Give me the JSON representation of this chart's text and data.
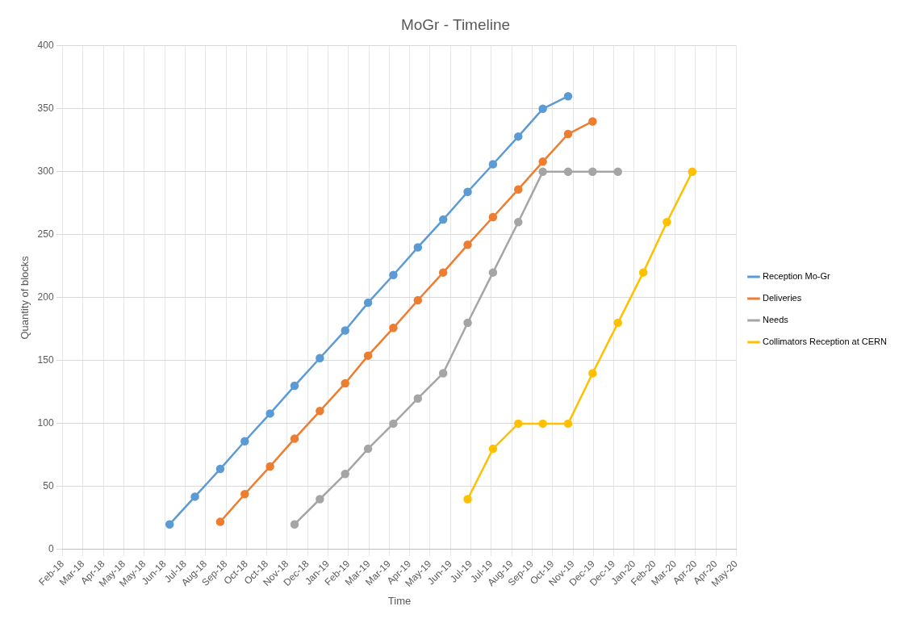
{
  "chart_data": {
    "type": "line",
    "title": "MoGr - Timeline",
    "xlabel": "Time",
    "ylabel": "Quantity of blocks",
    "series": [
      {
        "name": "Reception Mo-Gr",
        "color": "#5b9bd5",
        "x": [
          "2018-07-01",
          "2018-08-01",
          "2018-09-01",
          "2018-10-01",
          "2018-11-01",
          "2018-12-01",
          "2019-01-01",
          "2019-02-01",
          "2019-03-01",
          "2019-04-01",
          "2019-05-01",
          "2019-06-01",
          "2019-07-01",
          "2019-08-01",
          "2019-09-01",
          "2019-10-01",
          "2019-11-01"
        ],
        "values": [
          20,
          42,
          64,
          86,
          108,
          130,
          152,
          174,
          196,
          218,
          240,
          262,
          284,
          306,
          328,
          350,
          360
        ]
      },
      {
        "name": "Deliveries",
        "color": "#ed7d31",
        "x": [
          "2018-09-01",
          "2018-10-01",
          "2018-11-01",
          "2018-12-01",
          "2019-01-01",
          "2019-02-01",
          "2019-03-01",
          "2019-04-01",
          "2019-05-01",
          "2019-06-01",
          "2019-07-01",
          "2019-08-01",
          "2019-09-01",
          "2019-10-01",
          "2019-11-01",
          "2019-12-01"
        ],
        "values": [
          22,
          44,
          66,
          88,
          110,
          132,
          154,
          176,
          198,
          220,
          242,
          264,
          286,
          308,
          330,
          340
        ]
      },
      {
        "name": "Needs",
        "color": "#a5a5a5",
        "x": [
          "2018-12-01",
          "2019-01-01",
          "2019-02-01",
          "2019-03-01",
          "2019-04-01",
          "2019-05-01",
          "2019-06-01",
          "2019-07-01",
          "2019-08-01",
          "2019-09-01",
          "2019-10-01",
          "2019-11-01",
          "2019-12-01",
          "2020-01-01"
        ],
        "values": [
          20,
          40,
          60,
          80,
          100,
          120,
          140,
          180,
          220,
          260,
          300,
          300,
          300,
          300
        ]
      },
      {
        "name": "Collimators Reception at CERN",
        "color": "#ffc000",
        "x": [
          "2019-07-01",
          "2019-08-01",
          "2019-09-01",
          "2019-10-01",
          "2019-11-01",
          "2019-12-01",
          "2020-01-01",
          "2020-02-01",
          "2020-03-01",
          "2020-04-01"
        ],
        "values": [
          40,
          80,
          100,
          100,
          100,
          140,
          180,
          220,
          260,
          300
        ]
      }
    ],
    "xlim": [
      "2018-02-20",
      "2020-05-25"
    ],
    "xticks": [
      {
        "value": "2018-02-20",
        "label": "Feb-18"
      },
      {
        "value": "2018-03-17",
        "label": "Mar-18"
      },
      {
        "value": "2018-04-11",
        "label": "Apr-18"
      },
      {
        "value": "2018-05-06",
        "label": "May-18"
      },
      {
        "value": "2018-05-31",
        "label": "May-18"
      },
      {
        "value": "2018-06-25",
        "label": "Jun-18"
      },
      {
        "value": "2018-07-20",
        "label": "Jul-18"
      },
      {
        "value": "2018-08-14",
        "label": "Aug-18"
      },
      {
        "value": "2018-09-08",
        "label": "Sep-18"
      },
      {
        "value": "2018-10-03",
        "label": "Oct-18"
      },
      {
        "value": "2018-10-28",
        "label": "Oct-18"
      },
      {
        "value": "2018-11-22",
        "label": "Nov-18"
      },
      {
        "value": "2018-12-17",
        "label": "Dec-18"
      },
      {
        "value": "2019-01-11",
        "label": "Jan-19"
      },
      {
        "value": "2019-02-05",
        "label": "Feb-19"
      },
      {
        "value": "2019-03-02",
        "label": "Mar-19"
      },
      {
        "value": "2019-03-27",
        "label": "Mar-19"
      },
      {
        "value": "2019-04-21",
        "label": "Apr-19"
      },
      {
        "value": "2019-05-16",
        "label": "May-19"
      },
      {
        "value": "2019-06-10",
        "label": "Jun-19"
      },
      {
        "value": "2019-07-05",
        "label": "Jul-19"
      },
      {
        "value": "2019-07-30",
        "label": "Jul-19"
      },
      {
        "value": "2019-08-24",
        "label": "Aug-19"
      },
      {
        "value": "2019-09-18",
        "label": "Sep-19"
      },
      {
        "value": "2019-10-13",
        "label": "Oct-19"
      },
      {
        "value": "2019-11-07",
        "label": "Nov-19"
      },
      {
        "value": "2019-12-02",
        "label": "Dec-19"
      },
      {
        "value": "2019-12-27",
        "label": "Dec-19"
      },
      {
        "value": "2020-01-21",
        "label": "Jan-20"
      },
      {
        "value": "2020-02-15",
        "label": "Feb-20"
      },
      {
        "value": "2020-03-11",
        "label": "Mar-20"
      },
      {
        "value": "2020-04-05",
        "label": "Apr-20"
      },
      {
        "value": "2020-04-30",
        "label": "Apr-20"
      },
      {
        "value": "2020-05-25",
        "label": "May-20"
      }
    ],
    "ylim": [
      0,
      400
    ],
    "yticks": [
      0,
      50,
      100,
      150,
      200,
      250,
      300,
      350,
      400
    ],
    "grid": true,
    "legend": "right",
    "marker": "circle",
    "line_style": "solid"
  }
}
